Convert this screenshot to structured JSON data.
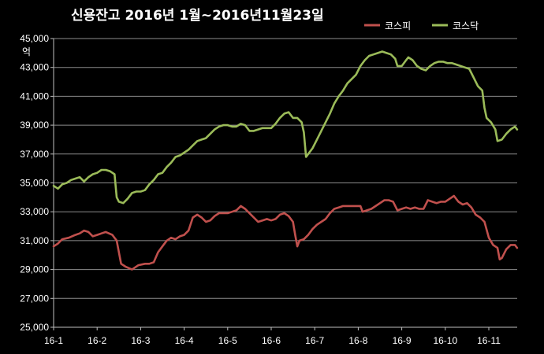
{
  "chart_data": {
    "type": "line",
    "title": "신용잔고 2016년 1월~2016년11월23일",
    "ylabel": "억",
    "xlabel": "",
    "ylim": [
      25000,
      45000
    ],
    "yticks": [
      "25,000",
      "27,000",
      "29,000",
      "31,000",
      "33,000",
      "35,000",
      "37,000",
      "39,000",
      "41,000",
      "43,000",
      "45,000"
    ],
    "categories": [
      "16-1",
      "16-2",
      "16-3",
      "16-4",
      "16-5",
      "16-6",
      "16-7",
      "16-8",
      "16-9",
      "16-10",
      "16-11"
    ],
    "grid": true,
    "legend_position": "top-right",
    "x_range": [
      0,
      10.65
    ],
    "series": [
      {
        "name": "코스피",
        "color": "#c0504d",
        "points": [
          [
            0,
            30600
          ],
          [
            0.1,
            30800
          ],
          [
            0.2,
            31100
          ],
          [
            0.35,
            31200
          ],
          [
            0.5,
            31400
          ],
          [
            0.6,
            31500
          ],
          [
            0.7,
            31700
          ],
          [
            0.8,
            31600
          ],
          [
            0.9,
            31300
          ],
          [
            1.0,
            31400
          ],
          [
            1.1,
            31500
          ],
          [
            1.2,
            31600
          ],
          [
            1.35,
            31400
          ],
          [
            1.45,
            31000
          ],
          [
            1.5,
            30200
          ],
          [
            1.55,
            29400
          ],
          [
            1.65,
            29200
          ],
          [
            1.8,
            29000
          ],
          [
            1.95,
            29300
          ],
          [
            2.1,
            29400
          ],
          [
            2.2,
            29400
          ],
          [
            2.3,
            29500
          ],
          [
            2.4,
            30200
          ],
          [
            2.5,
            30600
          ],
          [
            2.6,
            31000
          ],
          [
            2.7,
            31200
          ],
          [
            2.8,
            31100
          ],
          [
            2.9,
            31300
          ],
          [
            3.0,
            31400
          ],
          [
            3.1,
            31700
          ],
          [
            3.2,
            32600
          ],
          [
            3.3,
            32800
          ],
          [
            3.4,
            32600
          ],
          [
            3.5,
            32300
          ],
          [
            3.6,
            32400
          ],
          [
            3.7,
            32700
          ],
          [
            3.8,
            32900
          ],
          [
            3.9,
            32900
          ],
          [
            4.0,
            32900
          ],
          [
            4.1,
            33000
          ],
          [
            4.2,
            33100
          ],
          [
            4.3,
            33400
          ],
          [
            4.4,
            33200
          ],
          [
            4.5,
            32900
          ],
          [
            4.6,
            32600
          ],
          [
            4.7,
            32300
          ],
          [
            4.8,
            32400
          ],
          [
            4.9,
            32500
          ],
          [
            5.0,
            32400
          ],
          [
            5.1,
            32500
          ],
          [
            5.2,
            32800
          ],
          [
            5.3,
            32900
          ],
          [
            5.4,
            32700
          ],
          [
            5.5,
            32300
          ],
          [
            5.55,
            31400
          ],
          [
            5.6,
            30600
          ],
          [
            5.65,
            31000
          ],
          [
            5.75,
            31100
          ],
          [
            5.85,
            31400
          ],
          [
            5.95,
            31800
          ],
          [
            6.05,
            32100
          ],
          [
            6.15,
            32300
          ],
          [
            6.25,
            32500
          ],
          [
            6.35,
            32900
          ],
          [
            6.45,
            33200
          ],
          [
            6.55,
            33300
          ],
          [
            6.65,
            33400
          ],
          [
            6.75,
            33400
          ],
          [
            6.85,
            33400
          ],
          [
            6.95,
            33400
          ],
          [
            7.05,
            33400
          ],
          [
            7.1,
            33000
          ],
          [
            7.2,
            33100
          ],
          [
            7.3,
            33200
          ],
          [
            7.4,
            33400
          ],
          [
            7.5,
            33600
          ],
          [
            7.6,
            33800
          ],
          [
            7.7,
            33800
          ],
          [
            7.8,
            33700
          ],
          [
            7.9,
            33100
          ],
          [
            8.0,
            33200
          ],
          [
            8.1,
            33300
          ],
          [
            8.2,
            33200
          ],
          [
            8.3,
            33300
          ],
          [
            8.4,
            33200
          ],
          [
            8.5,
            33200
          ],
          [
            8.6,
            33800
          ],
          [
            8.7,
            33700
          ],
          [
            8.8,
            33600
          ],
          [
            8.9,
            33700
          ],
          [
            9.0,
            33700
          ],
          [
            9.1,
            33900
          ],
          [
            9.2,
            34100
          ],
          [
            9.3,
            33700
          ],
          [
            9.4,
            33500
          ],
          [
            9.5,
            33600
          ],
          [
            9.6,
            33300
          ],
          [
            9.7,
            32800
          ],
          [
            9.8,
            32600
          ],
          [
            9.9,
            32300
          ],
          [
            10.0,
            31200
          ],
          [
            10.1,
            30700
          ],
          [
            10.2,
            30500
          ],
          [
            10.25,
            29700
          ],
          [
            10.3,
            29800
          ],
          [
            10.4,
            30400
          ],
          [
            10.5,
            30700
          ],
          [
            10.6,
            30700
          ],
          [
            10.65,
            30500
          ]
        ]
      },
      {
        "name": "코스닥",
        "color": "#9bbb59",
        "points": [
          [
            0,
            34800
          ],
          [
            0.1,
            34600
          ],
          [
            0.2,
            34900
          ],
          [
            0.3,
            35000
          ],
          [
            0.4,
            35200
          ],
          [
            0.5,
            35300
          ],
          [
            0.6,
            35400
          ],
          [
            0.7,
            35100
          ],
          [
            0.8,
            35400
          ],
          [
            0.9,
            35600
          ],
          [
            1.0,
            35700
          ],
          [
            1.1,
            35900
          ],
          [
            1.2,
            35900
          ],
          [
            1.3,
            35800
          ],
          [
            1.4,
            35600
          ],
          [
            1.45,
            34000
          ],
          [
            1.5,
            33700
          ],
          [
            1.6,
            33600
          ],
          [
            1.7,
            33900
          ],
          [
            1.8,
            34300
          ],
          [
            1.9,
            34400
          ],
          [
            2.0,
            34400
          ],
          [
            2.1,
            34500
          ],
          [
            2.2,
            34900
          ],
          [
            2.3,
            35200
          ],
          [
            2.4,
            35600
          ],
          [
            2.5,
            35700
          ],
          [
            2.6,
            36100
          ],
          [
            2.7,
            36400
          ],
          [
            2.8,
            36800
          ],
          [
            2.9,
            36900
          ],
          [
            3.0,
            37100
          ],
          [
            3.1,
            37300
          ],
          [
            3.2,
            37600
          ],
          [
            3.3,
            37900
          ],
          [
            3.4,
            38000
          ],
          [
            3.5,
            38100
          ],
          [
            3.6,
            38400
          ],
          [
            3.7,
            38700
          ],
          [
            3.8,
            38900
          ],
          [
            3.9,
            39000
          ],
          [
            4.0,
            39000
          ],
          [
            4.1,
            38900
          ],
          [
            4.2,
            38900
          ],
          [
            4.3,
            39100
          ],
          [
            4.4,
            39000
          ],
          [
            4.5,
            38600
          ],
          [
            4.6,
            38600
          ],
          [
            4.7,
            38700
          ],
          [
            4.8,
            38800
          ],
          [
            4.9,
            38800
          ],
          [
            5.0,
            38800
          ],
          [
            5.1,
            39100
          ],
          [
            5.2,
            39500
          ],
          [
            5.3,
            39800
          ],
          [
            5.4,
            39900
          ],
          [
            5.5,
            39500
          ],
          [
            5.6,
            39500
          ],
          [
            5.7,
            39200
          ],
          [
            5.75,
            38500
          ],
          [
            5.8,
            36800
          ],
          [
            5.85,
            37000
          ],
          [
            5.95,
            37400
          ],
          [
            6.05,
            38000
          ],
          [
            6.15,
            38600
          ],
          [
            6.25,
            39200
          ],
          [
            6.35,
            39800
          ],
          [
            6.45,
            40500
          ],
          [
            6.55,
            41000
          ],
          [
            6.65,
            41400
          ],
          [
            6.75,
            41900
          ],
          [
            6.85,
            42200
          ],
          [
            6.95,
            42500
          ],
          [
            7.05,
            43100
          ],
          [
            7.15,
            43500
          ],
          [
            7.25,
            43800
          ],
          [
            7.35,
            43900
          ],
          [
            7.45,
            44000
          ],
          [
            7.55,
            44100
          ],
          [
            7.65,
            44000
          ],
          [
            7.75,
            43900
          ],
          [
            7.85,
            43600
          ],
          [
            7.9,
            43100
          ],
          [
            8.0,
            43100
          ],
          [
            8.1,
            43500
          ],
          [
            8.15,
            43700
          ],
          [
            8.25,
            43500
          ],
          [
            8.35,
            43100
          ],
          [
            8.45,
            42900
          ],
          [
            8.55,
            42800
          ],
          [
            8.65,
            43100
          ],
          [
            8.75,
            43300
          ],
          [
            8.85,
            43400
          ],
          [
            8.95,
            43400
          ],
          [
            9.05,
            43300
          ],
          [
            9.15,
            43300
          ],
          [
            9.25,
            43200
          ],
          [
            9.35,
            43100
          ],
          [
            9.45,
            43000
          ],
          [
            9.55,
            42900
          ],
          [
            9.65,
            42300
          ],
          [
            9.75,
            41700
          ],
          [
            9.85,
            41400
          ],
          [
            9.9,
            40200
          ],
          [
            9.95,
            39500
          ],
          [
            10.05,
            39200
          ],
          [
            10.15,
            38700
          ],
          [
            10.2,
            37900
          ],
          [
            10.3,
            38000
          ],
          [
            10.4,
            38400
          ],
          [
            10.5,
            38700
          ],
          [
            10.6,
            38900
          ],
          [
            10.65,
            38700
          ]
        ]
      }
    ]
  }
}
